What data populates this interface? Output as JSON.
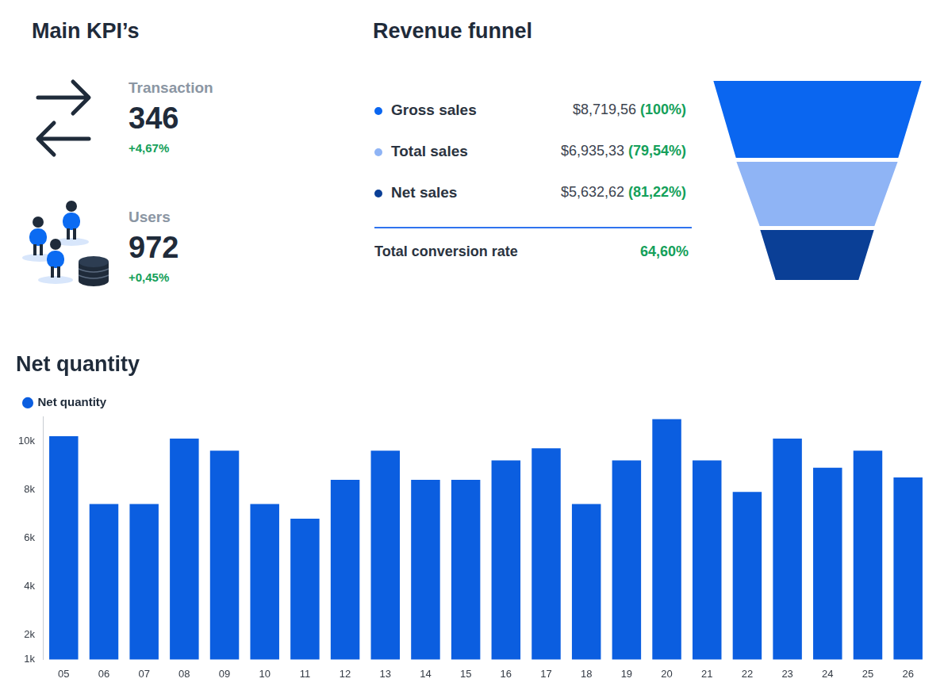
{
  "kpis": {
    "title": "Main KPI’s",
    "items": [
      {
        "label": "Transaction",
        "value": "346",
        "change": "+4,67%"
      },
      {
        "label": "Users",
        "value": "972",
        "change": "+0,45%"
      }
    ]
  },
  "revenue_funnel": {
    "title": "Revenue funnel",
    "rows": [
      {
        "label": "Gross sales",
        "value": "$8,719,56",
        "share": "(100%)",
        "color": "#0a66f0"
      },
      {
        "label": "Total sales",
        "value": "$6,935,33",
        "share": "(79,54%)",
        "color": "#8fb4f5"
      },
      {
        "label": "Net sales",
        "value": "$5,632,62",
        "share": "(81,22%)",
        "color": "#0a3f96"
      }
    ],
    "total": {
      "label": "Total conversion rate",
      "value": "64,60%"
    }
  },
  "chart_data": {
    "type": "bar",
    "title": "Net quantity",
    "categories": [
      "05",
      "06",
      "07",
      "08",
      "09",
      "10",
      "11",
      "12",
      "13",
      "14",
      "15",
      "16",
      "17",
      "18",
      "19",
      "20",
      "21",
      "22",
      "23",
      "24",
      "25",
      "26"
    ],
    "series": [
      {
        "name": "Net quantity",
        "color": "#0b5ee0",
        "values": [
          10200,
          7400,
          7400,
          10100,
          9600,
          7400,
          6800,
          8400,
          9600,
          8400,
          8400,
          9200,
          9700,
          7400,
          9200,
          10900,
          9200,
          7900,
          10100,
          8900,
          9600,
          8500
        ]
      }
    ],
    "ylim": [
      1000,
      11000
    ],
    "yticks": [
      {
        "value": 1000,
        "label": "1k"
      },
      {
        "value": 2000,
        "label": "2k"
      },
      {
        "value": 4000,
        "label": "4k"
      },
      {
        "value": 6000,
        "label": "6k"
      },
      {
        "value": 8000,
        "label": "8k"
      },
      {
        "value": 10000,
        "label": "10k"
      }
    ],
    "grid": false,
    "legend": "top-left"
  }
}
